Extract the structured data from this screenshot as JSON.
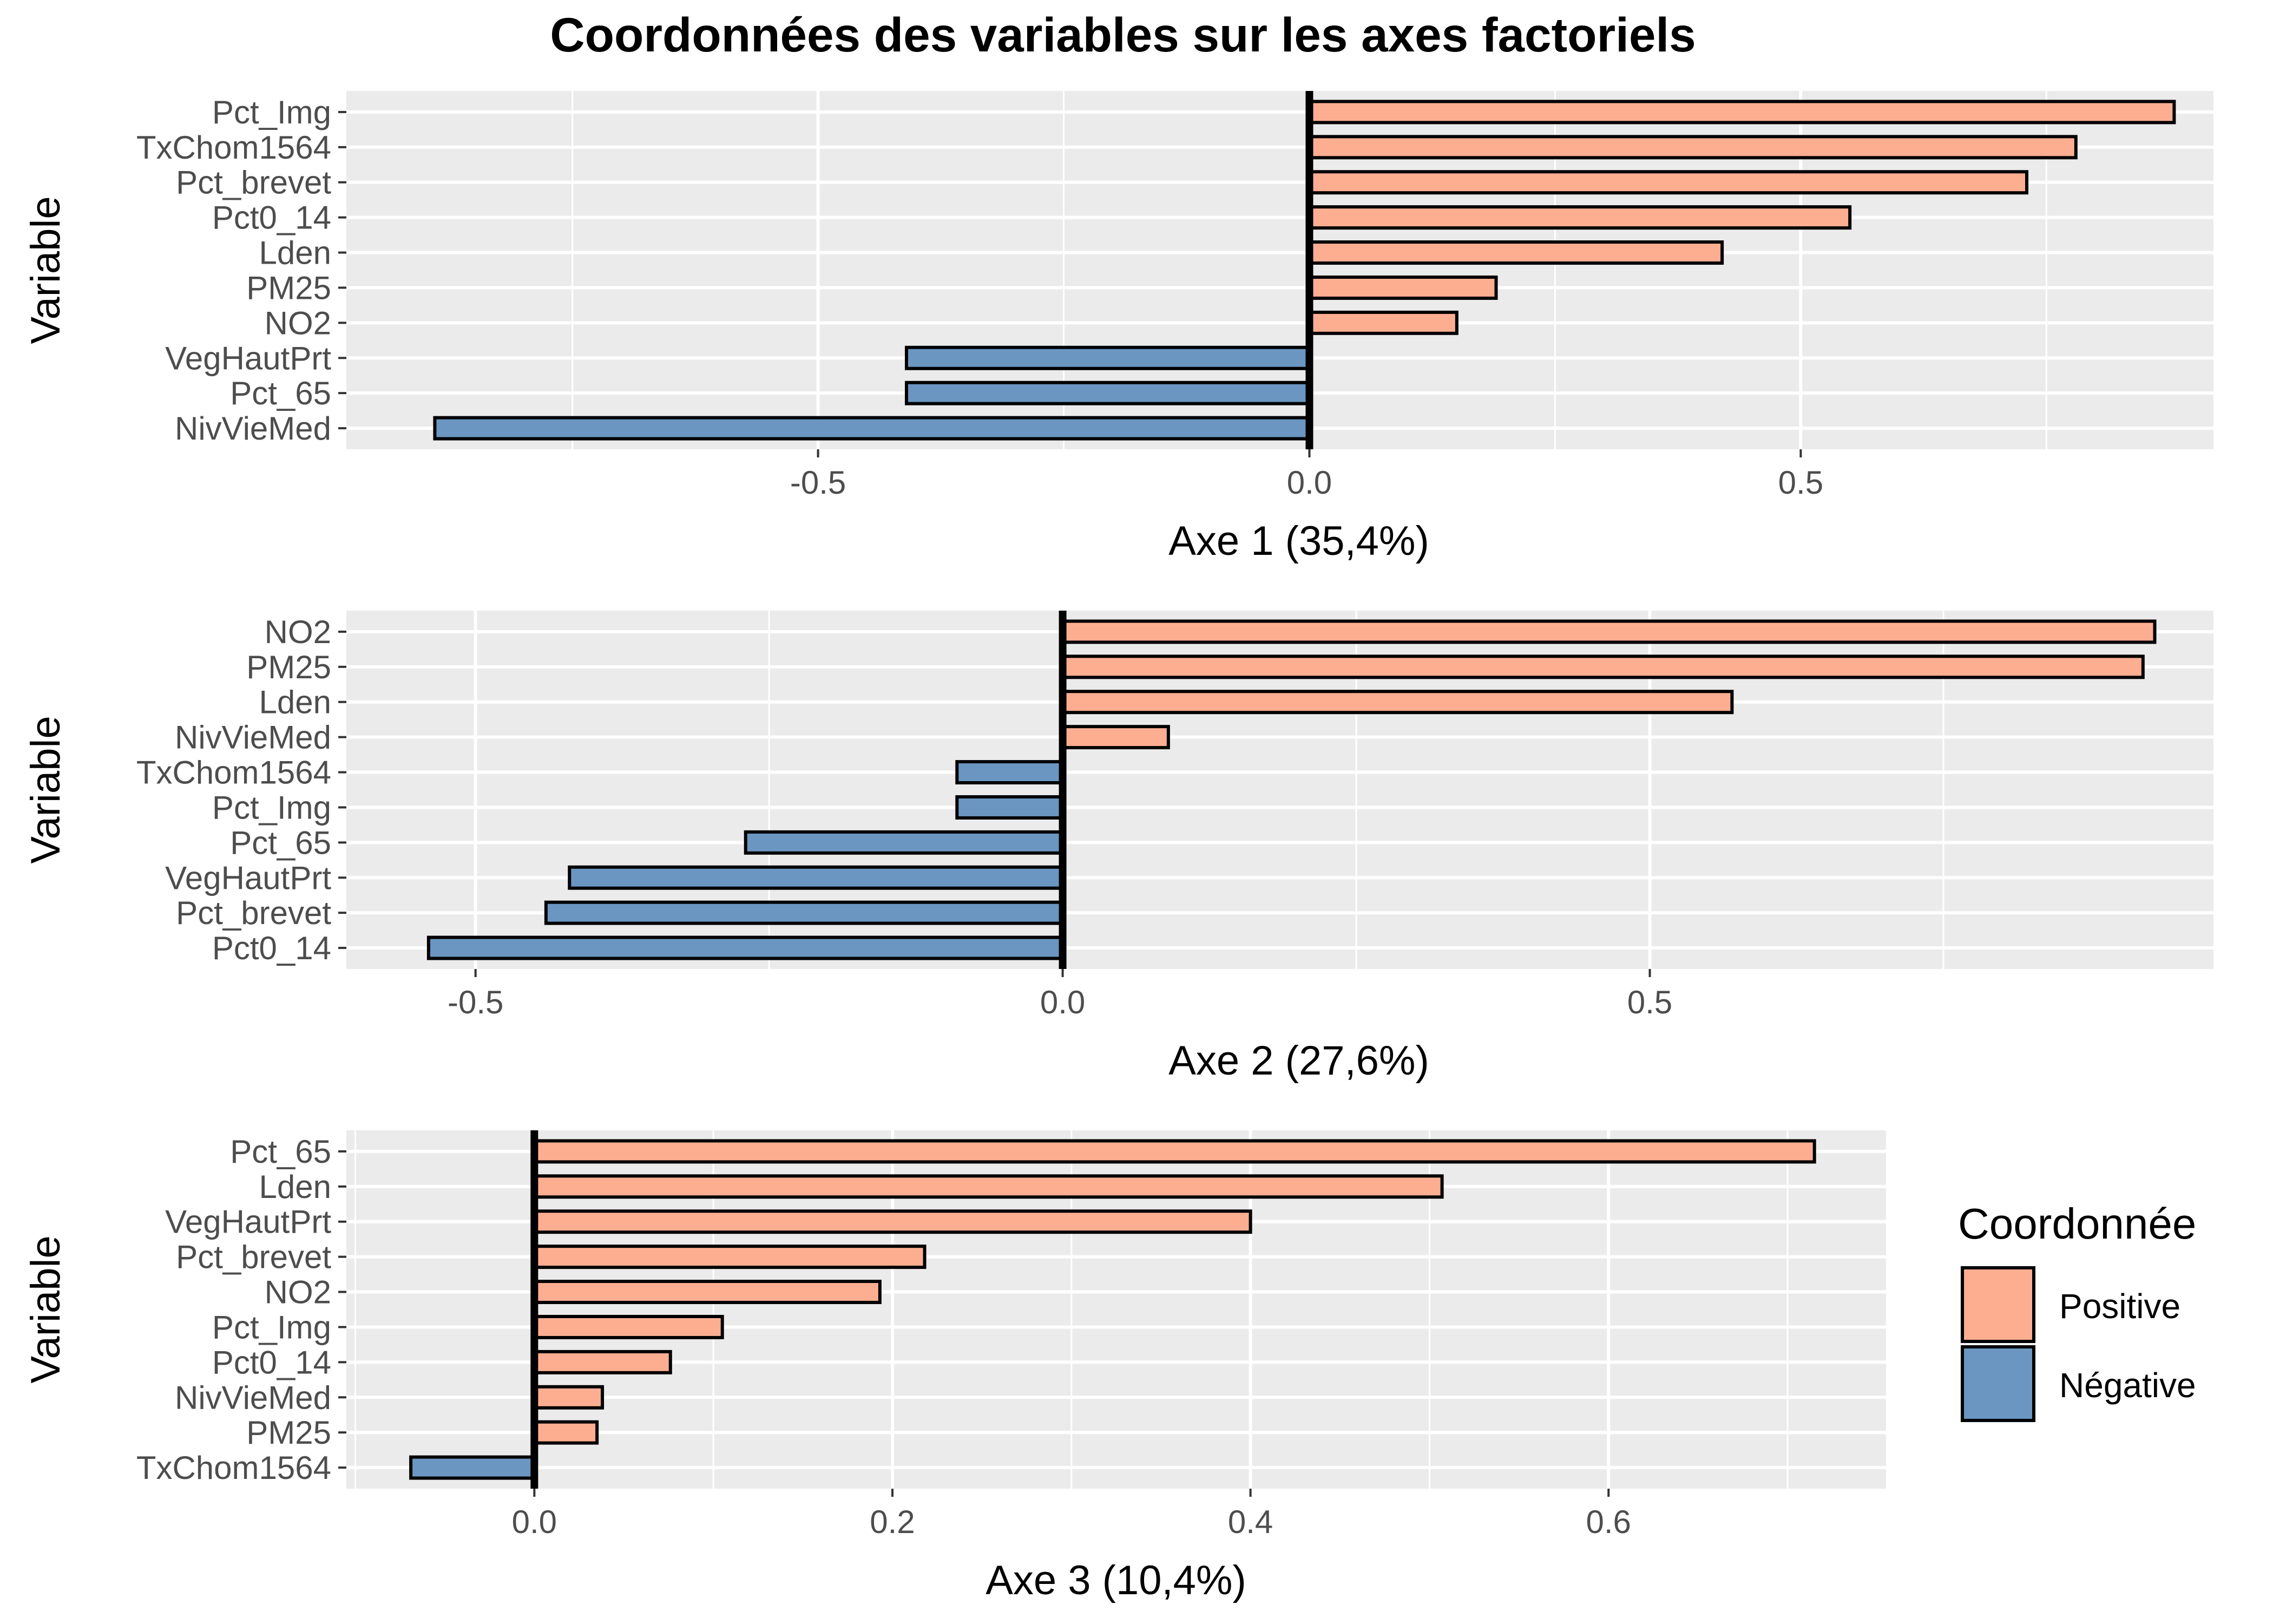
{
  "title": "Coordonnées des variables sur les axes factoriels",
  "colors": {
    "positive": "#FDAE91",
    "negative": "#6A96C1",
    "panel": "#EBEBEB",
    "grid": "#FFFFFF",
    "zero_line": "#000000"
  },
  "legend": {
    "title": "Coordonnée",
    "items": [
      {
        "label": "Positive",
        "color": "#FDAE91"
      },
      {
        "label": "Négative",
        "color": "#6A96C1"
      }
    ]
  },
  "chart_data": [
    {
      "type": "bar",
      "orientation": "horizontal",
      "xlabel": "Axe 1 (35,4%)",
      "ylabel": "Variable",
      "xlim": [
        -0.98,
        0.92
      ],
      "xticks": [
        -0.5,
        0.0,
        0.5
      ],
      "xtick_labels": [
        "-0.5",
        "0.0",
        "0.5"
      ],
      "categories": [
        "Pct_Img",
        "TxChom1564",
        "Pct_brevet",
        "Pct0_14",
        "Lden",
        "PM25",
        "NO2",
        "VegHautPrt",
        "Pct_65",
        "NivVieMed"
      ],
      "values": [
        0.88,
        0.78,
        0.73,
        0.55,
        0.42,
        0.19,
        0.15,
        -0.41,
        -0.41,
        -0.89
      ]
    },
    {
      "type": "bar",
      "orientation": "horizontal",
      "xlabel": "Axe 2 (27,6%)",
      "ylabel": "Variable",
      "xlim": [
        -0.61,
        0.98
      ],
      "xticks": [
        -0.5,
        0.0,
        0.5
      ],
      "xtick_labels": [
        "-0.5",
        "0.0",
        "0.5"
      ],
      "categories": [
        "NO2",
        "PM25",
        "Lden",
        "NivVieMed",
        "TxChom1564",
        "Pct_Img",
        "Pct_65",
        "VegHautPrt",
        "Pct_brevet",
        "Pct0_14"
      ],
      "values": [
        0.93,
        0.92,
        0.57,
        0.09,
        -0.09,
        -0.09,
        -0.27,
        -0.42,
        -0.44,
        -0.54
      ]
    },
    {
      "type": "bar",
      "orientation": "horizontal",
      "xlabel": "Axe 3 (10,4%)",
      "ylabel": "Variable",
      "xlim": [
        -0.105,
        0.755
      ],
      "xticks": [
        0.0,
        0.2,
        0.4,
        0.6
      ],
      "xtick_labels": [
        "0.0",
        "0.2",
        "0.4",
        "0.6"
      ],
      "categories": [
        "Pct_65",
        "Lden",
        "VegHautPrt",
        "Pct_brevet",
        "NO2",
        "Pct_Img",
        "Pct0_14",
        "NivVieMed",
        "PM25",
        "TxChom1564"
      ],
      "values": [
        0.715,
        0.507,
        0.4,
        0.218,
        0.193,
        0.105,
        0.076,
        0.038,
        0.035,
        -0.069
      ]
    }
  ]
}
